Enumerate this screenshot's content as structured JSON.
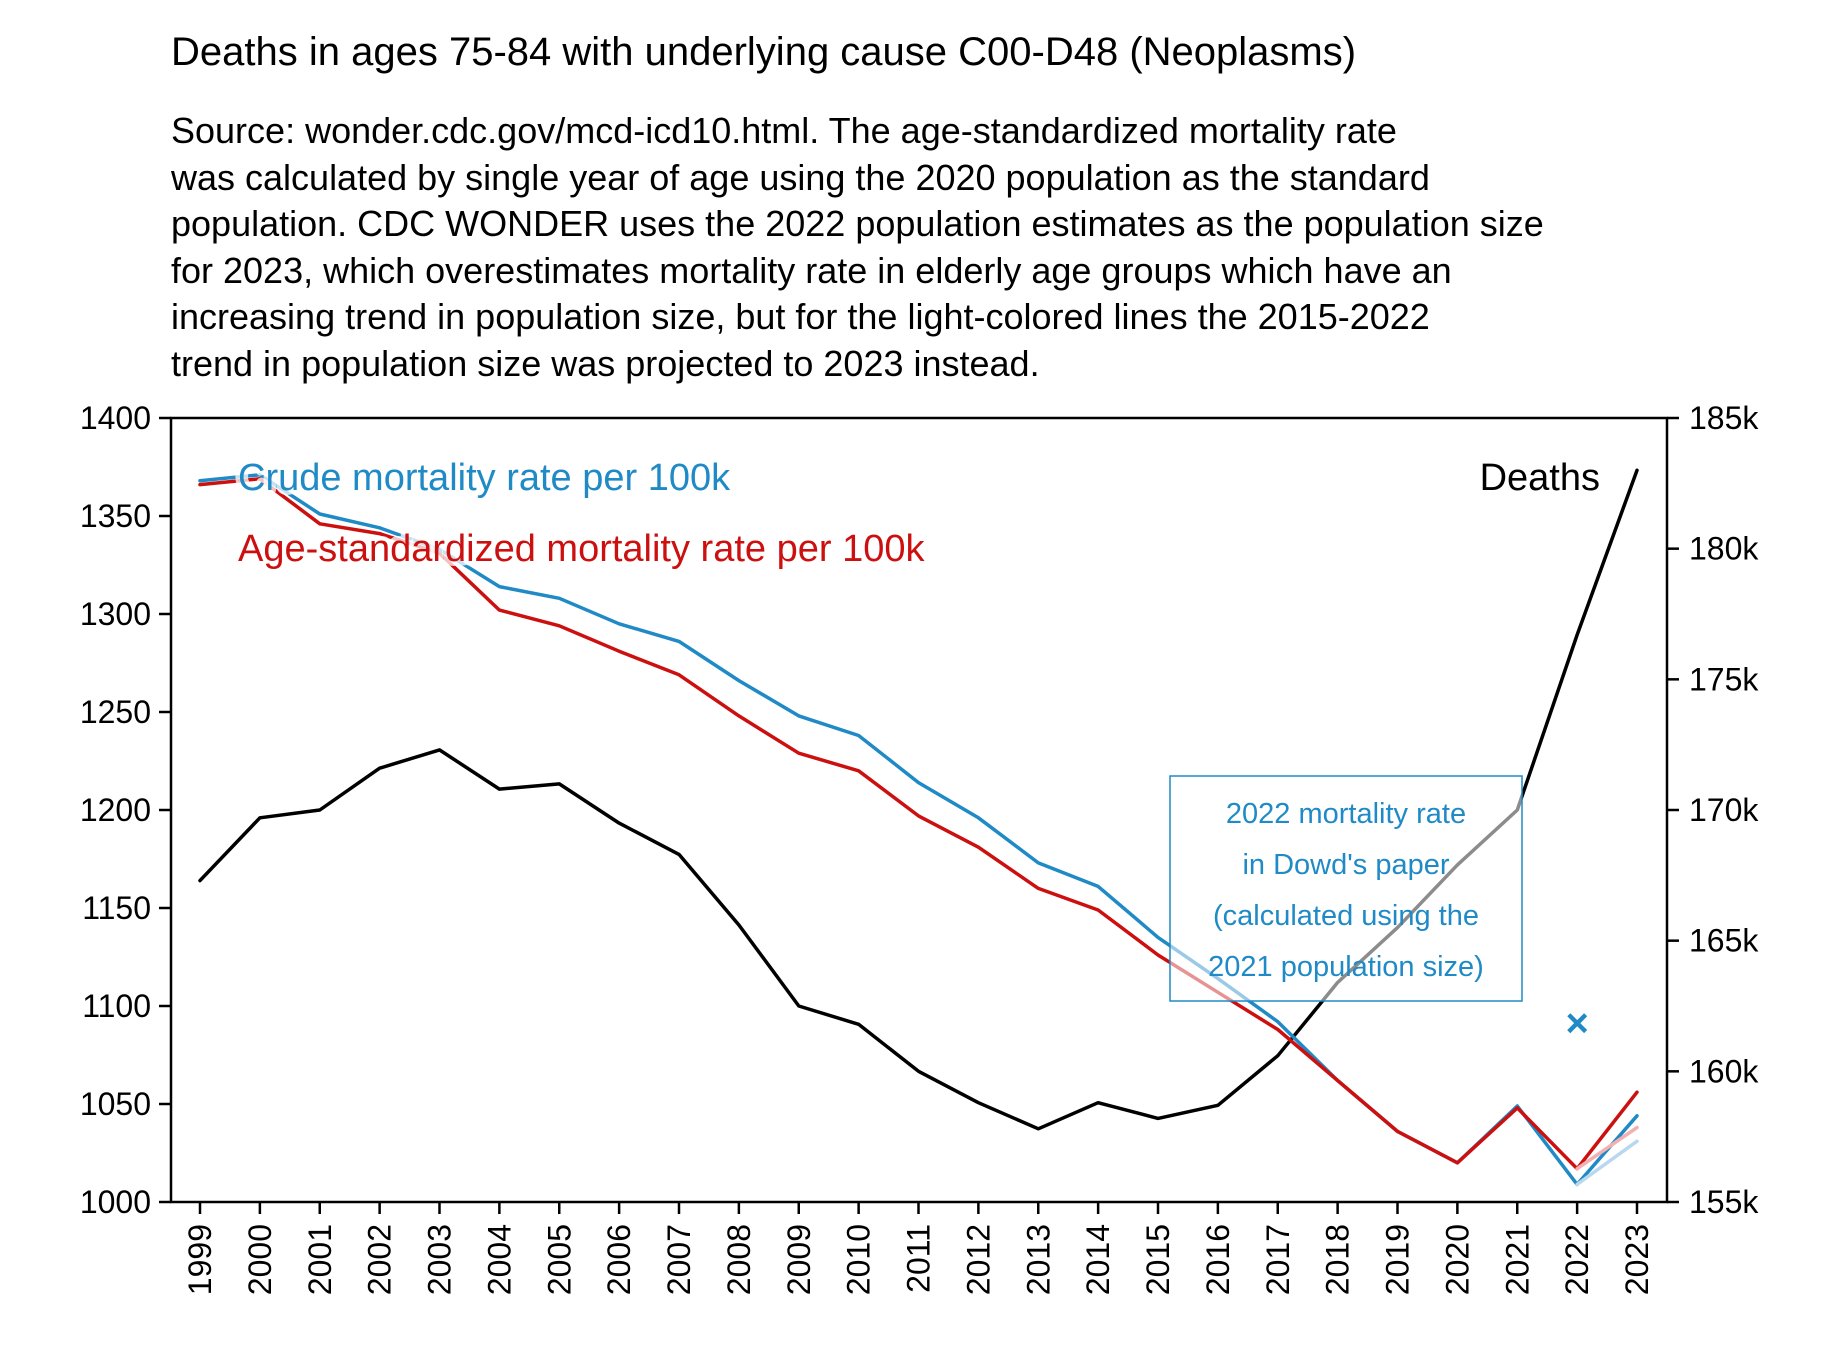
{
  "chart_data": {
    "type": "line",
    "title": "Deaths in ages 75-84 with underlying cause C00-D48 (Neoplasms)",
    "subtitle_lines": [
      "Source: wonder.cdc.gov/mcd-icd10.html. The age-standardized mortality rate",
      "was calculated by single year of age using the 2020 population as the standard",
      "population. CDC WONDER uses the 2022 population estimates as the population size",
      "for 2023, which overestimates mortality rate in elderly age groups which have an",
      "increasing trend in population size, but for the light-colored lines the 2015-2022",
      "trend in population size was projected to 2023 instead."
    ],
    "x": [
      1999,
      2000,
      2001,
      2002,
      2003,
      2004,
      2005,
      2006,
      2007,
      2008,
      2009,
      2010,
      2011,
      2012,
      2013,
      2014,
      2015,
      2016,
      2017,
      2018,
      2019,
      2020,
      2021,
      2022,
      2023
    ],
    "x_tick_labels": [
      "1999",
      "2000",
      "2001",
      "2002",
      "2003",
      "2004",
      "2005",
      "2006",
      "2007",
      "2008",
      "2009",
      "2010",
      "2011",
      "2012",
      "2013",
      "2014",
      "2015",
      "2016",
      "2017",
      "2018",
      "2019",
      "2020",
      "2021",
      "2022",
      "2023"
    ],
    "y_left": {
      "ylim": [
        1000,
        1400
      ],
      "ticks": [
        "1000",
        "1050",
        "1100",
        "1150",
        "1200",
        "1250",
        "1300",
        "1350",
        "1400"
      ]
    },
    "y_right": {
      "ylim": [
        155000,
        185000
      ],
      "ticks": [
        "155k",
        "160k",
        "165k",
        "170k",
        "175k",
        "180k",
        "185k"
      ]
    },
    "series": [
      {
        "name": "Crude mortality rate per 100k",
        "axis": "left",
        "color": "#1f8ac6",
        "values": [
          1368,
          1371,
          1351,
          1344,
          1333,
          1314,
          1308,
          1295,
          1286,
          1266,
          1248,
          1238,
          1214,
          1196,
          1173,
          1161,
          1135,
          1114,
          1092,
          1062,
          1036,
          1020,
          1049,
          1009,
          1044
        ]
      },
      {
        "name": "Age-standardized mortality rate per 100k",
        "axis": "left",
        "color": "#cc1010",
        "values": [
          1366,
          1369,
          1346,
          1341,
          1331,
          1302,
          1294,
          1281,
          1269,
          1248,
          1229,
          1220,
          1197,
          1181,
          1160,
          1149,
          1126,
          1107,
          1088,
          1062,
          1036,
          1020,
          1048,
          1017,
          1056
        ]
      },
      {
        "name": "Deaths",
        "axis": "right",
        "color": "#000000",
        "values": [
          167300,
          169700,
          170000,
          171600,
          172300,
          170800,
          171000,
          169500,
          168300,
          165600,
          162500,
          161800,
          160000,
          158800,
          157800,
          158800,
          158200,
          158700,
          160600,
          163400,
          165500,
          167900,
          170000,
          176700,
          183000
        ]
      }
    ],
    "projected_2023": {
      "crude": [
        1009,
        1031
      ],
      "age_standardized": [
        1017,
        1038
      ]
    },
    "marker": {
      "x": 2022,
      "y": 1091,
      "symbol": "×",
      "color": "#1f8ac6"
    },
    "annotation": {
      "lines": [
        "2022 mortality rate",
        "in Dowd's paper",
        "(calculated using the",
        "2021 population size)"
      ],
      "color": "#1f8ac6"
    },
    "legend": {
      "crude_label": "Crude mortality rate per 100k",
      "age_label": "Age-standardized mortality rate per 100k",
      "deaths_label": "Deaths"
    }
  }
}
